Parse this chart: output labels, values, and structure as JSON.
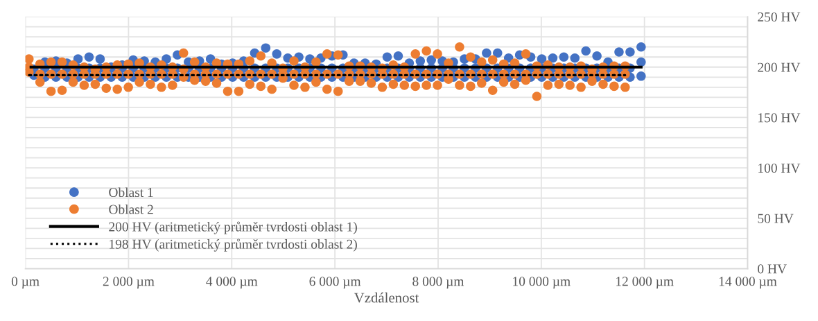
{
  "chart_data": {
    "type": "scatter",
    "xlabel": "Vzdálenost",
    "xlim": [
      0,
      14000
    ],
    "xticks": [
      {
        "value": 0,
        "label": "0 µm"
      },
      {
        "value": 2000,
        "label": "2 000 µm"
      },
      {
        "value": 4000,
        "label": "4 000 µm"
      },
      {
        "value": 6000,
        "label": "6 000 µm"
      },
      {
        "value": 8000,
        "label": "8 000 µm"
      },
      {
        "value": 10000,
        "label": "10 000 µm"
      },
      {
        "value": 12000,
        "label": "12 000 µm"
      },
      {
        "value": 14000,
        "label": "14 000 µm"
      }
    ],
    "ylim": [
      0,
      250
    ],
    "yticks": [
      {
        "value": 0,
        "label": "0 HV"
      },
      {
        "value": 10,
        "label": null
      },
      {
        "value": 20,
        "label": null
      },
      {
        "value": 30,
        "label": null
      },
      {
        "value": 40,
        "label": null
      },
      {
        "value": 50,
        "label": "50 HV"
      },
      {
        "value": 60,
        "label": null
      },
      {
        "value": 70,
        "label": null
      },
      {
        "value": 80,
        "label": null
      },
      {
        "value": 90,
        "label": null
      },
      {
        "value": 100,
        "label": "100 HV"
      },
      {
        "value": 110,
        "label": null
      },
      {
        "value": 120,
        "label": null
      },
      {
        "value": 130,
        "label": null
      },
      {
        "value": 140,
        "label": null
      },
      {
        "value": 150,
        "label": "150 HV"
      },
      {
        "value": 160,
        "label": null
      },
      {
        "value": 170,
        "label": null
      },
      {
        "value": 180,
        "label": null
      },
      {
        "value": 190,
        "label": null
      },
      {
        "value": 200,
        "label": "200 HV"
      },
      {
        "value": 210,
        "label": null
      },
      {
        "value": 220,
        "label": null
      },
      {
        "value": 230,
        "label": null
      },
      {
        "value": 240,
        "label": null
      },
      {
        "value": 250,
        "label": "250 HV"
      }
    ],
    "grid": true,
    "legend": "bottom left",
    "marker": "circle",
    "series": [
      {
        "name": "Oblast 1",
        "color": "#4472c4",
        "x": [
          165,
          165,
          379,
          379,
          379,
          593,
          593,
          593,
          807,
          807,
          807,
          1021,
          1021,
          1021,
          1235,
          1235,
          1235,
          1449,
          1449,
          1449,
          1663,
          1663,
          1663,
          1877,
          1877,
          1877,
          2091,
          2091,
          2091,
          2305,
          2305,
          2305,
          2519,
          2519,
          2519,
          2733,
          2733,
          2733,
          2947,
          2947,
          2947,
          3161,
          3161,
          3161,
          3375,
          3375,
          3375,
          3589,
          3589,
          3589,
          3803,
          3803,
          3803,
          4017,
          4017,
          4017,
          4231,
          4231,
          4231,
          4445,
          4445,
          4445,
          4659,
          4659,
          4659,
          4873,
          4873,
          4873,
          5087,
          5087,
          5087,
          5301,
          5301,
          5301,
          5515,
          5515,
          5515,
          5729,
          5729,
          5729,
          5943,
          5943,
          5943,
          6157,
          6157,
          6157,
          6371,
          6371,
          6371,
          6585,
          6585,
          6585,
          6799,
          6799,
          6799,
          7013,
          7013,
          7013,
          7227,
          7227,
          7227,
          7441,
          7441,
          7441,
          7655,
          7655,
          7655,
          7869,
          7869,
          7869,
          8083,
          8083,
          8083,
          8297,
          8297,
          8297,
          8511,
          8511,
          8511,
          8725,
          8725,
          8725,
          8939,
          8939,
          8939,
          9153,
          9153,
          9153,
          9367,
          9367,
          9367,
          9581,
          9581,
          9581,
          9795,
          9795,
          9795,
          10009,
          10009,
          10009,
          10223,
          10223,
          10223,
          10437,
          10437,
          10437,
          10651,
          10651,
          10651,
          10865,
          10865,
          10865,
          11079,
          11079,
          11079,
          11293,
          11293,
          11293,
          11507,
          11507,
          11507,
          11721,
          11721,
          11721,
          11935,
          11935,
          11935
        ],
        "values": [
          198,
          192,
          205,
          199,
          190,
          206,
          199,
          190,
          204,
          199,
          190,
          208,
          199,
          190,
          210,
          199,
          190,
          208,
          199,
          190,
          200,
          199,
          190,
          202,
          199,
          190,
          207,
          199,
          190,
          206,
          199,
          190,
          205,
          199,
          190,
          208,
          199,
          190,
          212,
          199,
          190,
          205,
          199,
          190,
          206,
          199,
          190,
          208,
          199,
          190,
          203,
          199,
          190,
          204,
          199,
          190,
          206,
          199,
          190,
          214,
          199,
          190,
          219,
          199,
          190,
          213,
          199,
          190,
          209,
          199,
          190,
          210,
          199,
          190,
          208,
          199,
          190,
          209,
          199,
          190,
          211,
          199,
          190,
          212,
          199,
          190,
          204,
          199,
          190,
          204,
          199,
          190,
          203,
          199,
          190,
          210,
          199,
          190,
          211,
          199,
          190,
          204,
          199,
          190,
          206,
          199,
          190,
          207,
          199,
          190,
          206,
          199,
          190,
          205,
          199,
          190,
          208,
          199,
          190,
          208,
          199,
          190,
          214,
          199,
          190,
          214,
          199,
          190,
          209,
          199,
          190,
          212,
          199,
          190,
          210,
          199,
          190,
          208,
          199,
          190,
          209,
          199,
          190,
          210,
          199,
          190,
          209,
          199,
          190,
          216,
          199,
          190,
          211,
          199,
          190,
          205,
          199,
          190,
          215,
          199,
          190,
          215,
          199,
          190,
          220,
          205,
          191
        ]
      },
      {
        "name": "Oblast 2",
        "color": "#ed7d31",
        "x": [
          70,
          70,
          70,
          284,
          284,
          284,
          498,
          498,
          498,
          712,
          712,
          712,
          926,
          926,
          926,
          1140,
          1140,
          1140,
          1354,
          1354,
          1354,
          1568,
          1568,
          1568,
          1782,
          1782,
          1782,
          1996,
          1996,
          1996,
          2210,
          2210,
          2210,
          2424,
          2424,
          2424,
          2638,
          2638,
          2638,
          2852,
          2852,
          2852,
          3066,
          3066,
          3066,
          3280,
          3280,
          3280,
          3494,
          3494,
          3494,
          3708,
          3708,
          3708,
          3922,
          3922,
          3922,
          4136,
          4136,
          4136,
          4350,
          4350,
          4350,
          4564,
          4564,
          4564,
          4778,
          4778,
          4778,
          4992,
          4992,
          4992,
          5206,
          5206,
          5206,
          5420,
          5420,
          5420,
          5634,
          5634,
          5634,
          5848,
          5848,
          5848,
          6062,
          6062,
          6062,
          6276,
          6276,
          6276,
          6490,
          6490,
          6490,
          6704,
          6704,
          6704,
          6918,
          6918,
          6918,
          7132,
          7132,
          7132,
          7346,
          7346,
          7346,
          7560,
          7560,
          7560,
          7774,
          7774,
          7774,
          7988,
          7988,
          7988,
          8202,
          8202,
          8202,
          8416,
          8416,
          8416,
          8630,
          8630,
          8630,
          8844,
          8844,
          8844,
          9058,
          9058,
          9058,
          9272,
          9272,
          9272,
          9486,
          9486,
          9486,
          9700,
          9700,
          9700,
          9914,
          9914,
          9914,
          10128,
          10128,
          10128,
          10342,
          10342,
          10342,
          10556,
          10556,
          10556,
          10770,
          10770,
          10770,
          10984,
          10984,
          10984,
          11198,
          11198,
          11198,
          11412,
          11412,
          11412,
          11626,
          11626,
          11626
        ],
        "values": [
          208,
          200,
          195,
          203,
          193,
          185,
          205,
          193,
          176,
          205,
          193,
          177,
          202,
          193,
          185,
          200,
          193,
          182,
          198,
          193,
          183,
          200,
          193,
          179,
          202,
          193,
          178,
          203,
          193,
          180,
          204,
          193,
          185,
          200,
          193,
          183,
          202,
          193,
          180,
          200,
          193,
          182,
          214,
          198,
          190,
          205,
          193,
          187,
          200,
          193,
          186,
          204,
          193,
          184,
          203,
          193,
          176,
          203,
          193,
          176,
          206,
          193,
          183,
          211,
          193,
          181,
          204,
          193,
          178,
          199,
          193,
          189,
          206,
          193,
          182,
          200,
          193,
          180,
          205,
          193,
          185,
          213,
          193,
          178,
          212,
          193,
          176,
          201,
          193,
          186,
          201,
          193,
          186,
          200,
          193,
          184,
          199,
          193,
          180,
          202,
          193,
          183,
          200,
          193,
          182,
          213,
          193,
          181,
          216,
          193,
          182,
          213,
          193,
          182,
          204,
          193,
          188,
          220,
          193,
          182,
          210,
          193,
          181,
          205,
          193,
          184,
          207,
          193,
          177,
          203,
          193,
          185,
          204,
          193,
          183,
          213,
          193,
          187,
          201,
          193,
          171,
          202,
          193,
          182,
          200,
          193,
          183,
          200,
          193,
          182,
          201,
          193,
          180,
          198,
          193,
          186,
          200,
          193,
          183,
          201,
          193,
          181,
          201,
          193,
          180
        ]
      },
      {
        "name": "200 HV (aritmetický průměr tvrdosti oblast 1)",
        "color": "#000000",
        "type": "line",
        "marker": "none",
        "line_style": "solid",
        "x": [
          110,
          11935
        ],
        "values": [
          200,
          200
        ]
      },
      {
        "name": "198 HV (aritmetický průměr tvrdosti oblast 2)",
        "color": "#000000",
        "type": "line",
        "marker": "none",
        "line_style": "dotted",
        "x": [
          70,
          11626
        ],
        "values": [
          192,
          192
        ]
      }
    ]
  }
}
